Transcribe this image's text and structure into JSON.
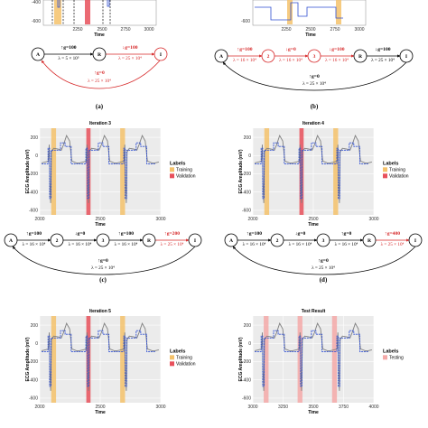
{
  "chart_data": [
    {
      "type": "line",
      "panel": "a",
      "title": "",
      "xlabel": "Time",
      "ylabel": "",
      "x_ticks": [
        "2250",
        "2500",
        "2750",
        "3000"
      ],
      "y_ticks": [
        "-400",
        "-600"
      ],
      "ylim": [
        -600,
        -400
      ]
    },
    {
      "type": "line",
      "panel": "b",
      "title": "",
      "xlabel": "Time",
      "ylabel": "",
      "x_ticks": [
        "2250",
        "2500",
        "2750",
        "3000"
      ],
      "y_ticks": [
        "-600"
      ],
      "ylim": [
        -600,
        -400
      ]
    },
    {
      "type": "line",
      "panel": "c",
      "title": "Iteration 3",
      "xlabel": "Time",
      "ylabel": "ECG Amplitude (mV)",
      "x_ticks": [
        "2000",
        "2500",
        "3000"
      ],
      "y_ticks": [
        "200",
        "0",
        "-200",
        "-400",
        "-600"
      ],
      "xlim": [
        2000,
        3000
      ],
      "ylim": [
        -650,
        300
      ],
      "legend": {
        "title": "Labels",
        "entries": [
          {
            "label": "Training",
            "color": "#f5c26b"
          },
          {
            "label": "Validation",
            "color": "#e8505b"
          }
        ]
      },
      "shaded_regions": [
        {
          "label": "Training",
          "x0": 2095,
          "x1": 2135
        },
        {
          "label": "Validation",
          "x0": 2385,
          "x1": 2420
        },
        {
          "label": "Training",
          "x0": 2665,
          "x1": 2705
        }
      ]
    },
    {
      "type": "line",
      "panel": "d",
      "title": "Iteration 4",
      "xlabel": "Time",
      "ylabel": "ECG Amplitude (mV)",
      "x_ticks": [
        "2000",
        "2500",
        "3000"
      ],
      "y_ticks": [
        "200",
        "0",
        "-200",
        "-400",
        "-600"
      ],
      "xlim": [
        2000,
        3000
      ],
      "ylim": [
        -650,
        300
      ],
      "legend": {
        "title": "Labels",
        "entries": [
          {
            "label": "Training",
            "color": "#f5c26b"
          },
          {
            "label": "Validation",
            "color": "#e8505b"
          }
        ]
      },
      "shaded_regions": [
        {
          "label": "Training",
          "x0": 2095,
          "x1": 2135
        },
        {
          "label": "Validation",
          "x0": 2385,
          "x1": 2420
        },
        {
          "label": "Training",
          "x0": 2665,
          "x1": 2705
        }
      ]
    },
    {
      "type": "line",
      "panel": "e",
      "title": "Iteration 5",
      "xlabel": "Time",
      "ylabel": "ECG Amplitude (mV)",
      "x_ticks": [
        "2000",
        "2500",
        "3000"
      ],
      "y_ticks": [
        "200",
        "0",
        "-200",
        "-400",
        "-600"
      ],
      "xlim": [
        2000,
        3000
      ],
      "ylim": [
        -650,
        300
      ],
      "legend": {
        "title": "Labels",
        "entries": [
          {
            "label": "Training",
            "color": "#f5c26b"
          },
          {
            "label": "Validation",
            "color": "#e8505b"
          }
        ]
      },
      "shaded_regions": [
        {
          "label": "Training",
          "x0": 2095,
          "x1": 2135
        },
        {
          "label": "Validation",
          "x0": 2385,
          "x1": 2420
        },
        {
          "label": "Training",
          "x0": 2665,
          "x1": 2705
        }
      ]
    },
    {
      "type": "line",
      "panel": "f",
      "title": "Test Result",
      "xlabel": "Time",
      "ylabel": "ECG Amplitude (mV)",
      "x_ticks": [
        "3000",
        "3250",
        "3500",
        "3750",
        "4000"
      ],
      "y_ticks": [
        "200",
        "0",
        "-200",
        "-400",
        "-600"
      ],
      "xlim": [
        3000,
        4000
      ],
      "ylim": [
        -650,
        300
      ],
      "legend": {
        "title": "Labels",
        "entries": [
          {
            "label": "Testing",
            "color": "#f4a9a8"
          }
        ]
      },
      "shaded_regions": [
        {
          "label": "Testing",
          "x0": 3090,
          "x1": 3130
        },
        {
          "label": "Testing",
          "x0": 3370,
          "x1": 3410
        },
        {
          "label": "Testing",
          "x0": 3655,
          "x1": 3695
        }
      ]
    }
  ],
  "fsm": {
    "a": {
      "states": [
        "A",
        "R",
        "I"
      ],
      "top": [
        {
          "text": "g=100",
          "dir": "up",
          "color": "#000000",
          "lambda": "λ = 5 × 10⁵"
        },
        {
          "text": "g=100",
          "dir": "down",
          "color": "#d62728",
          "lambda": "λ = 25 × 10⁴"
        }
      ],
      "loop_red": {
        "text": "g=0",
        "dir": "up",
        "lambda": "λ = 25 × 10⁴"
      }
    },
    "b": {
      "states": [
        "A",
        "2",
        "3",
        "R",
        "I"
      ],
      "top": [
        {
          "text": "g=100",
          "dir": "up",
          "color": "#d62728",
          "lambda": "λ = 16 × 10⁴"
        },
        {
          "text": "g=0",
          "dir": "down",
          "color": "#d62728",
          "lambda": "λ = 16 × 10⁴"
        },
        {
          "text": "g=100",
          "dir": "down",
          "color": "#d62728",
          "lambda": "λ = 16 × 10⁴"
        },
        {
          "text": "g=100",
          "dir": "down",
          "color": "#000000",
          "lambda": "λ = 25 × 10⁴"
        }
      ],
      "loop": {
        "text": "g=0",
        "dir": "up",
        "lambda": "λ = 25 × 10⁴"
      }
    },
    "c": {
      "states": [
        "A",
        "2",
        "3",
        "R",
        "I"
      ],
      "top": [
        {
          "text": "g=100",
          "dir": "up",
          "color": "#000000",
          "lambda": "λ = 16 × 10⁴"
        },
        {
          "text": "g=0",
          "dir": "down",
          "color": "#000000",
          "lambda": "λ = 16 × 10⁴"
        },
        {
          "text": "g=100",
          "dir": "up",
          "color": "#000000",
          "lambda": "λ = 16 × 10⁴"
        },
        {
          "text": "g=200",
          "dir": "up",
          "color": "#d62728",
          "lambda": "λ = 25 × 10⁴"
        }
      ],
      "loop": {
        "text": "g=0",
        "dir": "up",
        "lambda": "λ = 25 × 10⁴"
      }
    },
    "d": {
      "states": [
        "A",
        "2",
        "3",
        "R",
        "I"
      ],
      "top": [
        {
          "text": "g=100",
          "dir": "up",
          "color": "#000000",
          "lambda": "λ = 16 × 10⁴"
        },
        {
          "text": "g=0",
          "dir": "down",
          "color": "#000000",
          "lambda": "λ = 16 × 10⁴"
        },
        {
          "text": "g=0",
          "dir": "up",
          "color": "#000000",
          "lambda": "λ = 16 × 10⁴"
        },
        {
          "text": "g=400",
          "dir": "up",
          "color": "#d62728",
          "lambda": "λ = 25 × 10⁴"
        }
      ],
      "loop": {
        "text": "g=0",
        "dir": "up",
        "lambda": "λ = 25 × 10⁴"
      }
    }
  },
  "captions": {
    "a": "(a)",
    "b": "(b)",
    "c": "(c)",
    "d": "(d)"
  },
  "colors": {
    "signal": "#7f7f7f",
    "fit": "#2f4fd1",
    "training": "#f5c26b",
    "validation": "#e8505b",
    "testing": "#f4a9a8",
    "highlight": "#d62728"
  }
}
